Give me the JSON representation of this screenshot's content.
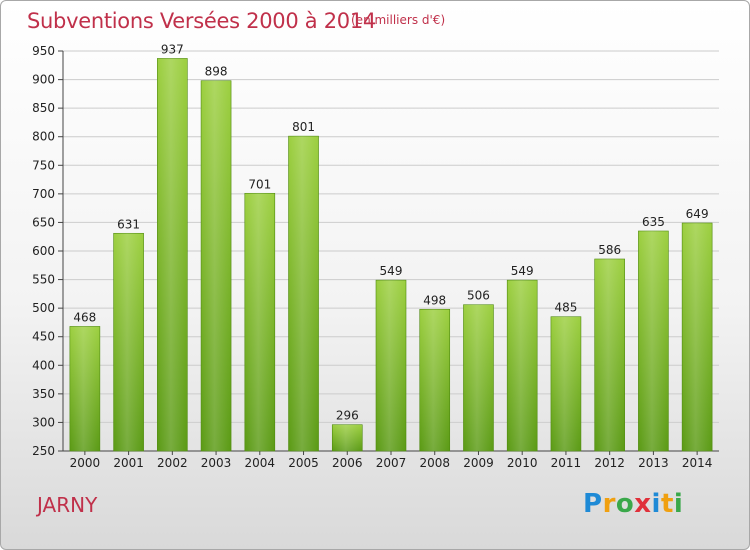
{
  "header": {
    "title": "Subventions Versées 2000 à 2014",
    "unit_note": "(en milliers d'€)"
  },
  "location": "JARNY",
  "logo": {
    "text": "Proxiti",
    "letters": [
      {
        "ch": "P",
        "color": "#1e8ad6"
      },
      {
        "ch": "r",
        "color": "#f0a010"
      },
      {
        "ch": "o",
        "color": "#3aa84a"
      },
      {
        "ch": "x",
        "color": "#e0303a"
      },
      {
        "ch": "i",
        "color": "#1e8ad6"
      },
      {
        "ch": "t",
        "color": "#f0a010"
      },
      {
        "ch": "i",
        "color": "#3aa84a"
      }
    ]
  },
  "colors": {
    "bar_top": "#9ccf3f",
    "bar_bottom": "#5a9a14",
    "grid": "#cccccc",
    "axis": "#444444",
    "accent": "#c0304a"
  },
  "chart_data": {
    "type": "bar",
    "categories": [
      "2000",
      "2001",
      "2002",
      "2003",
      "2004",
      "2005",
      "2006",
      "2007",
      "2008",
      "2009",
      "2010",
      "2011",
      "2012",
      "2013",
      "2014"
    ],
    "values": [
      468,
      631,
      937,
      898,
      701,
      801,
      296,
      549,
      498,
      506,
      549,
      485,
      586,
      635,
      649
    ],
    "title": "Subventions Versées 2000 à 2014",
    "subtitle": "(en milliers d'€)",
    "ylim": [
      250,
      950
    ],
    "yticks": [
      250,
      300,
      350,
      400,
      450,
      500,
      550,
      600,
      650,
      700,
      750,
      800,
      850,
      900,
      950
    ],
    "grid": true
  }
}
